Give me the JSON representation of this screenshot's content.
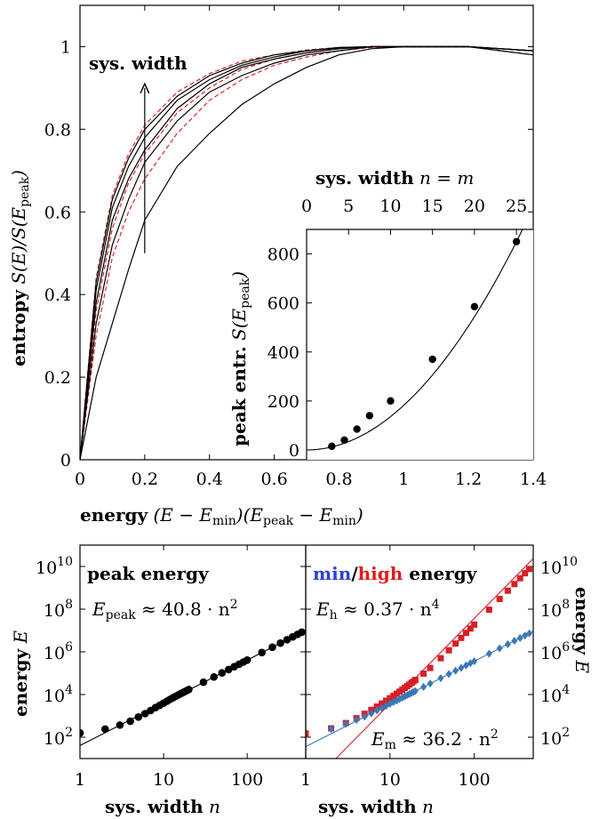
{
  "chart_data": [
    {
      "id": "main",
      "type": "line",
      "xlabel_bold": "energy",
      "xlabel_math": "(E − E",
      "xlabel_sub1": "min",
      "xlabel_math2": ")(E",
      "xlabel_sub2": "peak",
      "xlabel_math3": " − E",
      "xlabel_sub3": "min",
      "xlabel_math4": ")",
      "ylabel_bold": "entropy",
      "ylabel_math": "S(E)/S(E",
      "ylabel_sub": "peak",
      "ylabel_math2": ")",
      "xlim": [
        0,
        1.4
      ],
      "ylim": [
        0,
        1.1
      ],
      "x_ticks": [
        "0",
        "0.2",
        "0.4",
        "0.6",
        "0.8",
        "1",
        "1.2",
        "1.4"
      ],
      "y_ticks": [
        "0",
        "0.2",
        "0.4",
        "0.6",
        "0.8",
        "1"
      ],
      "annotation": "sys. width",
      "arrow_x": 0.2,
      "arrow_y": [
        0.5,
        0.9
      ],
      "colors": {
        "black": "#000000",
        "red_dashed": "#d62728"
      },
      "black_curves": [
        {
          "x": [
            0,
            0.05,
            0.1,
            0.15,
            0.2,
            0.3,
            0.4,
            0.5,
            0.6,
            0.7,
            0.8,
            0.9,
            1.0,
            1.2,
            1.4
          ],
          "y": [
            0,
            0.2,
            0.33,
            0.46,
            0.58,
            0.71,
            0.79,
            0.86,
            0.91,
            0.95,
            0.98,
            0.995,
            1.0,
            1.0,
            0.98
          ]
        },
        {
          "x": [
            0,
            0.05,
            0.1,
            0.15,
            0.2,
            0.3,
            0.4,
            0.5,
            0.6,
            0.7,
            0.8,
            0.9,
            1.0,
            1.2,
            1.4
          ],
          "y": [
            0,
            0.33,
            0.52,
            0.63,
            0.72,
            0.82,
            0.89,
            0.93,
            0.96,
            0.98,
            0.99,
            1.0,
            1.0,
            1.0,
            0.99
          ]
        },
        {
          "x": [
            0,
            0.05,
            0.1,
            0.15,
            0.2,
            0.3,
            0.4,
            0.5,
            0.6,
            0.7,
            0.8,
            0.9,
            1.0,
            1.2,
            1.4
          ],
          "y": [
            0,
            0.38,
            0.58,
            0.68,
            0.75,
            0.85,
            0.91,
            0.95,
            0.97,
            0.985,
            0.995,
            1.0,
            1.0,
            1.0,
            0.99
          ]
        },
        {
          "x": [
            0,
            0.05,
            0.1,
            0.15,
            0.2,
            0.3,
            0.4,
            0.5,
            0.6,
            0.7,
            0.8,
            0.9,
            1.0,
            1.2,
            1.4
          ],
          "y": [
            0,
            0.41,
            0.61,
            0.71,
            0.78,
            0.87,
            0.92,
            0.955,
            0.975,
            0.99,
            0.997,
            1.0,
            1.0,
            1.0,
            0.99
          ]
        },
        {
          "x": [
            0,
            0.05,
            0.1,
            0.15,
            0.2,
            0.3,
            0.4,
            0.5,
            0.6,
            0.7,
            0.8,
            0.9,
            1.0,
            1.2,
            1.4
          ],
          "y": [
            0,
            0.43,
            0.63,
            0.73,
            0.8,
            0.88,
            0.93,
            0.96,
            0.98,
            0.99,
            0.998,
            1.0,
            1.0,
            1.0,
            0.99
          ]
        }
      ],
      "red_curves": [
        {
          "x": [
            0,
            0.05,
            0.1,
            0.15,
            0.2,
            0.3,
            0.4,
            0.5,
            0.6,
            0.7,
            0.8,
            0.9,
            1.0,
            1.2,
            1.4
          ],
          "y": [
            0,
            0.3,
            0.49,
            0.6,
            0.68,
            0.79,
            0.87,
            0.92,
            0.955,
            0.975,
            0.99,
            0.998,
            1.0,
            1.0,
            0.99
          ]
        },
        {
          "x": [
            0,
            0.05,
            0.1,
            0.15,
            0.2,
            0.3,
            0.4,
            0.5,
            0.6,
            0.7,
            0.8,
            0.9,
            1.0,
            1.2,
            1.4
          ],
          "y": [
            0,
            0.36,
            0.56,
            0.67,
            0.74,
            0.84,
            0.9,
            0.945,
            0.97,
            0.985,
            0.995,
            1.0,
            1.0,
            1.0,
            0.99
          ]
        },
        {
          "x": [
            0,
            0.05,
            0.1,
            0.15,
            0.2,
            0.3,
            0.4,
            0.5,
            0.6,
            0.7,
            0.8,
            0.9,
            1.0,
            1.2,
            1.4
          ],
          "y": [
            0,
            0.44,
            0.64,
            0.74,
            0.81,
            0.89,
            0.935,
            0.965,
            0.98,
            0.992,
            0.998,
            1.0,
            1.0,
            1.0,
            0.98
          ]
        }
      ]
    },
    {
      "id": "inset",
      "type": "scatter",
      "xlabel_bold": "sys.  width",
      "xlabel_math": "n = m",
      "ylabel_bold": "peak entr.",
      "ylabel_math": "S(E",
      "ylabel_sub": "peak",
      "ylabel_math2": ")",
      "xlim": [
        0,
        27
      ],
      "ylim": [
        -40,
        900
      ],
      "x_ticks": [
        "0",
        "5",
        "10",
        "15",
        "20",
        "25"
      ],
      "y_ticks": [
        "0",
        "200",
        "400",
        "600",
        "800"
      ],
      "points": [
        {
          "x": 3,
          "y": 15
        },
        {
          "x": 4.5,
          "y": 40
        },
        {
          "x": 6,
          "y": 85
        },
        {
          "x": 7.5,
          "y": 140
        },
        {
          "x": 10,
          "y": 200
        },
        {
          "x": 15,
          "y": 370
        },
        {
          "x": 20,
          "y": 585
        },
        {
          "x": 25,
          "y": 850
        }
      ],
      "fit_coeff": 1.36
    },
    {
      "id": "peak",
      "type": "scatter",
      "title": "peak energy",
      "formula_math": "E",
      "formula_sub": "peak",
      "formula_rest": " ≈ 40.8 · n",
      "formula_sup": "2",
      "xlabel_bold": "sys.  width",
      "xlabel_math": "n",
      "ylabel_bold": "energy",
      "ylabel_math": "E",
      "xlim_log": [
        0,
        2.7
      ],
      "ylim_log": [
        1,
        11
      ],
      "x_ticks": [
        {
          "v": 0,
          "t": "1"
        },
        {
          "v": 1,
          "t": "10"
        },
        {
          "v": 2,
          "t": "100"
        }
      ],
      "y_ticks": [
        {
          "v": 2,
          "b": "10",
          "e": "2"
        },
        {
          "v": 4,
          "b": "10",
          "e": "4"
        },
        {
          "v": 6,
          "b": "10",
          "e": "6"
        },
        {
          "v": 8,
          "b": "10",
          "e": "8"
        },
        {
          "v": 10,
          "b": "10",
          "e": "10"
        }
      ],
      "n_values": [
        1,
        2,
        3,
        4,
        5,
        6,
        7,
        8,
        9,
        10,
        11,
        12,
        13,
        14,
        15,
        16,
        17,
        18,
        19,
        20,
        30,
        40,
        50,
        60,
        70,
        80,
        90,
        100,
        150,
        200,
        250,
        300,
        350,
        400,
        450
      ],
      "energies": [
        158,
        240,
        370,
        560,
        880,
        1270,
        1780,
        2440,
        3120,
        3960,
        4900,
        5960,
        7080,
        8280,
        9550,
        10900,
        12300,
        13800,
        15400,
        17000,
        37800,
        66400,
        103000,
        148000,
        201000,
        262000,
        332000,
        410000,
        922000,
        1640000,
        2560000,
        3690000,
        5020000,
        6560000,
        8300000
      ],
      "fit_coeff": 40.8,
      "fit_power": 2
    },
    {
      "id": "minhigh",
      "type": "scatter",
      "title_min": "min",
      "title_sep": "/",
      "title_high": "high",
      "title_rest": " energy",
      "formula_h_math": "E",
      "formula_h_sub": "h",
      "formula_h_rest": " ≈ 0.37 · n",
      "formula_h_sup": "4",
      "formula_m_math": "E",
      "formula_m_sub": "m",
      "formula_m_rest": " ≈ 36.2 · n",
      "formula_m_sup": "2",
      "xlabel_bold": "sys.  width",
      "xlabel_math": "n",
      "ylabel_bold": "energy",
      "ylabel_math": "E",
      "xlim_log": [
        0,
        2.7
      ],
      "ylim_log": [
        1,
        11
      ],
      "x_ticks": [
        {
          "v": 0,
          "t": "1"
        },
        {
          "v": 1,
          "t": "10"
        },
        {
          "v": 2,
          "t": "100"
        }
      ],
      "y_ticks": [
        {
          "v": 2,
          "b": "10",
          "e": "2"
        },
        {
          "v": 4,
          "b": "10",
          "e": "4"
        },
        {
          "v": 6,
          "b": "10",
          "e": "6"
        },
        {
          "v": 8,
          "b": "10",
          "e": "8"
        },
        {
          "v": 10,
          "b": "10",
          "e": "10"
        }
      ],
      "colors": {
        "min": "#2e3fd6",
        "high": "#e31a1c",
        "min_marker": "#3a78b8",
        "high_marker": "#d71f26"
      },
      "high_series": {
        "n": [
          1,
          2,
          3,
          4,
          5,
          6,
          7,
          8,
          9,
          10,
          11,
          12,
          13,
          14,
          15,
          16,
          17,
          18,
          19,
          20,
          25,
          30,
          40,
          50,
          60,
          70,
          80,
          90,
          100,
          150,
          200,
          250,
          300,
          350,
          400,
          450
        ],
        "e": [
          150,
          260,
          460,
          780,
          1250,
          1900,
          2700,
          3800,
          5100,
          6700,
          8600,
          10900,
          13600,
          16700,
          20400,
          24600,
          29500,
          35000,
          41300,
          48400,
          95000,
          175000,
          500000,
          1180000,
          2440000,
          4500000,
          7700000,
          12300000,
          18800000,
          94000000,
          300000000,
          730000000,
          1500000000,
          2800000000,
          4800000000,
          7600000000
        ]
      },
      "min_series": {
        "n": [
          2,
          3,
          4,
          5,
          6,
          7,
          8,
          9,
          10,
          11,
          12,
          13,
          14,
          15,
          16,
          17,
          18,
          19,
          20,
          25,
          30,
          40,
          50,
          60,
          70,
          80,
          90,
          100,
          150,
          200,
          250,
          300,
          350,
          400,
          450
        ],
        "e": [
          240,
          420,
          640,
          920,
          1300,
          1800,
          2300,
          2950,
          3650,
          4400,
          5200,
          6100,
          7100,
          8150,
          9300,
          10500,
          11700,
          13100,
          14500,
          22600,
          32600,
          58000,
          90500,
          130000,
          177000,
          232000,
          293000,
          362000,
          815000,
          1450000,
          2260000,
          3260000,
          4430000,
          5790000,
          7330000
        ]
      },
      "fit_h_coeff": 0.37,
      "fit_h_power": 4,
      "fit_m_coeff": 36.2,
      "fit_m_power": 2
    }
  ]
}
